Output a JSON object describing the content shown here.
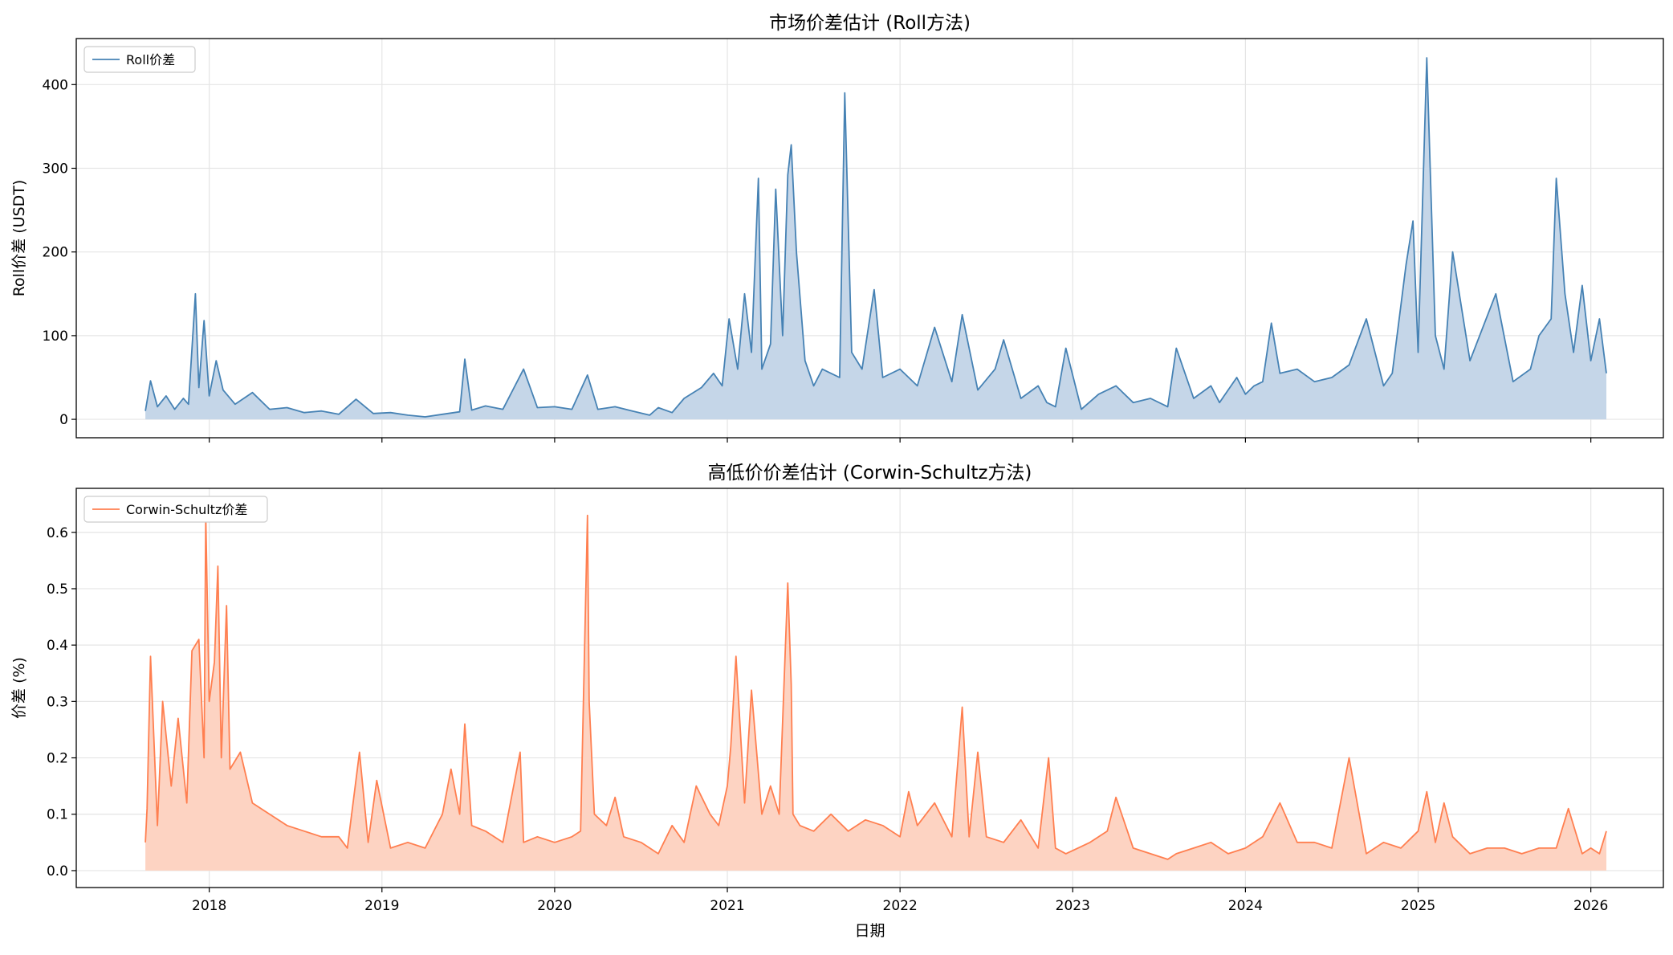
{
  "chart_data": [
    {
      "type": "area",
      "title": "市场价差估计 (Roll方法)",
      "xlabel": "",
      "ylabel": "Roll价差 (USDT)",
      "ylim": [
        -22,
        455
      ],
      "xlim": [
        2017.23,
        2026.42
      ],
      "yticks": [
        0,
        100,
        200,
        300,
        400
      ],
      "xticks": [
        "2018",
        "2019",
        "2020",
        "2021",
        "2022",
        "2023",
        "2024",
        "2025",
        "2026"
      ],
      "grid": true,
      "legend": "top-left",
      "color": "#4682b4",
      "fill_color": "#c5d6e8",
      "series": [
        {
          "name": "Roll价差",
          "x": [
            2017.63,
            2017.66,
            2017.7,
            2017.75,
            2017.8,
            2017.85,
            2017.88,
            2017.92,
            2017.94,
            2017.97,
            2018.0,
            2018.04,
            2018.08,
            2018.15,
            2018.25,
            2018.35,
            2018.45,
            2018.55,
            2018.65,
            2018.75,
            2018.85,
            2018.95,
            2019.05,
            2019.15,
            2019.25,
            2019.35,
            2019.45,
            2019.48,
            2019.52,
            2019.6,
            2019.7,
            2019.82,
            2019.9,
            2020.0,
            2020.1,
            2020.19,
            2020.25,
            2020.35,
            2020.45,
            2020.55,
            2020.6,
            2020.68,
            2020.75,
            2020.85,
            2020.92,
            2020.97,
            2021.01,
            2021.06,
            2021.1,
            2021.14,
            2021.18,
            2021.2,
            2021.25,
            2021.28,
            2021.32,
            2021.35,
            2021.37,
            2021.4,
            2021.45,
            2021.5,
            2021.55,
            2021.6,
            2021.65,
            2021.68,
            2021.72,
            2021.78,
            2021.85,
            2021.9,
            2022.0,
            2022.1,
            2022.2,
            2022.3,
            2022.36,
            2022.45,
            2022.55,
            2022.6,
            2022.7,
            2022.8,
            2022.85,
            2022.9,
            2022.96,
            2023.05,
            2023.15,
            2023.25,
            2023.35,
            2023.45,
            2023.55,
            2023.6,
            2023.7,
            2023.8,
            2023.85,
            2023.95,
            2024.0,
            2024.05,
            2024.1,
            2024.15,
            2024.2,
            2024.3,
            2024.4,
            2024.5,
            2024.6,
            2024.7,
            2024.8,
            2024.85,
            2024.93,
            2024.97,
            2025.0,
            2025.05,
            2025.1,
            2025.15,
            2025.2,
            2025.3,
            2025.45,
            2025.55,
            2025.65,
            2025.7,
            2025.77,
            2025.8,
            2025.85,
            2025.9,
            2025.95,
            2026.0,
            2026.05,
            2026.09
          ],
          "values": [
            10,
            46,
            15,
            28,
            12,
            25,
            18,
            150,
            38,
            118,
            28,
            70,
            35,
            18,
            32,
            12,
            14,
            8,
            10,
            6,
            24,
            7,
            8,
            5,
            3,
            6,
            9,
            72,
            11,
            16,
            12,
            60,
            14,
            15,
            12,
            53,
            12,
            15,
            10,
            5,
            14,
            8,
            25,
            38,
            55,
            40,
            120,
            60,
            150,
            80,
            288,
            60,
            90,
            275,
            100,
            292,
            328,
            200,
            70,
            40,
            60,
            55,
            50,
            390,
            80,
            60,
            155,
            50,
            60,
            40,
            110,
            45,
            125,
            35,
            60,
            95,
            25,
            40,
            20,
            15,
            85,
            12,
            30,
            40,
            20,
            25,
            15,
            85,
            25,
            40,
            20,
            50,
            30,
            40,
            45,
            115,
            55,
            60,
            45,
            50,
            65,
            120,
            40,
            55,
            185,
            237,
            80,
            432,
            100,
            60,
            200,
            70,
            150,
            45,
            60,
            100,
            120,
            288,
            150,
            80,
            160,
            70,
            120,
            55
          ]
        }
      ]
    },
    {
      "type": "area",
      "title": "高低价价差估计 (Corwin-Schultz方法)",
      "xlabel": "日期",
      "ylabel": "价差 (%)",
      "ylim": [
        -0.03,
        0.678
      ],
      "xlim": [
        2017.23,
        2026.42
      ],
      "yticks": [
        0.0,
        0.1,
        0.2,
        0.3,
        0.4,
        0.5,
        0.6
      ],
      "xticks": [
        "2018",
        "2019",
        "2020",
        "2021",
        "2022",
        "2023",
        "2024",
        "2025",
        "2026"
      ],
      "grid": true,
      "legend": "top-left",
      "color": "#ff7f50",
      "fill_color": "#fdd3c2",
      "series": [
        {
          "name": "Corwin-Schultz价差",
          "x": [
            2017.63,
            2017.64,
            2017.66,
            2017.7,
            2017.73,
            2017.78,
            2017.82,
            2017.87,
            2017.9,
            2017.94,
            2017.97,
            2017.98,
            2018.0,
            2018.03,
            2018.05,
            2018.07,
            2018.1,
            2018.12,
            2018.18,
            2018.25,
            2018.35,
            2018.45,
            2018.55,
            2018.65,
            2018.75,
            2018.8,
            2018.87,
            2018.92,
            2018.97,
            2019.05,
            2019.15,
            2019.25,
            2019.35,
            2019.4,
            2019.45,
            2019.48,
            2019.52,
            2019.6,
            2019.7,
            2019.8,
            2019.82,
            2019.9,
            2020.0,
            2020.1,
            2020.15,
            2020.19,
            2020.2,
            2020.23,
            2020.3,
            2020.35,
            2020.4,
            2020.5,
            2020.6,
            2020.68,
            2020.75,
            2020.82,
            2020.9,
            2020.95,
            2021.0,
            2021.02,
            2021.05,
            2021.1,
            2021.14,
            2021.2,
            2021.25,
            2021.3,
            2021.35,
            2021.37,
            2021.38,
            2021.42,
            2021.5,
            2021.6,
            2021.7,
            2021.8,
            2021.9,
            2022.0,
            2022.05,
            2022.1,
            2022.2,
            2022.3,
            2022.36,
            2022.4,
            2022.45,
            2022.5,
            2022.6,
            2022.7,
            2022.8,
            2022.86,
            2022.9,
            2022.96,
            2023.03,
            2023.1,
            2023.2,
            2023.25,
            2023.35,
            2023.45,
            2023.55,
            2023.6,
            2023.7,
            2023.8,
            2023.9,
            2024.0,
            2024.1,
            2024.2,
            2024.3,
            2024.4,
            2024.5,
            2024.6,
            2024.7,
            2024.8,
            2024.9,
            2025.0,
            2025.05,
            2025.1,
            2025.15,
            2025.2,
            2025.3,
            2025.4,
            2025.5,
            2025.6,
            2025.7,
            2025.8,
            2025.87,
            2025.95,
            2026.0,
            2026.05,
            2026.09
          ],
          "values": [
            0.05,
            0.11,
            0.38,
            0.08,
            0.3,
            0.15,
            0.27,
            0.12,
            0.39,
            0.41,
            0.2,
            0.63,
            0.3,
            0.37,
            0.54,
            0.2,
            0.47,
            0.18,
            0.21,
            0.12,
            0.1,
            0.08,
            0.07,
            0.06,
            0.06,
            0.04,
            0.21,
            0.05,
            0.16,
            0.04,
            0.05,
            0.04,
            0.1,
            0.18,
            0.1,
            0.26,
            0.08,
            0.07,
            0.05,
            0.21,
            0.05,
            0.06,
            0.05,
            0.06,
            0.07,
            0.63,
            0.3,
            0.1,
            0.08,
            0.13,
            0.06,
            0.05,
            0.03,
            0.08,
            0.05,
            0.15,
            0.1,
            0.08,
            0.15,
            0.22,
            0.38,
            0.12,
            0.32,
            0.1,
            0.15,
            0.1,
            0.51,
            0.33,
            0.1,
            0.08,
            0.07,
            0.1,
            0.07,
            0.09,
            0.08,
            0.06,
            0.14,
            0.08,
            0.12,
            0.06,
            0.29,
            0.06,
            0.21,
            0.06,
            0.05,
            0.09,
            0.04,
            0.2,
            0.04,
            0.03,
            0.04,
            0.05,
            0.07,
            0.13,
            0.04,
            0.03,
            0.02,
            0.03,
            0.04,
            0.05,
            0.03,
            0.04,
            0.06,
            0.12,
            0.05,
            0.05,
            0.04,
            0.2,
            0.03,
            0.05,
            0.04,
            0.07,
            0.14,
            0.05,
            0.12,
            0.06,
            0.03,
            0.04,
            0.04,
            0.03,
            0.04,
            0.04,
            0.11,
            0.03,
            0.04,
            0.03,
            0.07
          ]
        }
      ]
    }
  ]
}
